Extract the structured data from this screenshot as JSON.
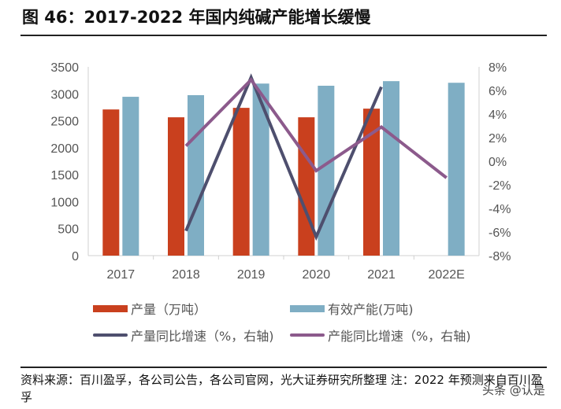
{
  "title": "图 46：2017-2022 年国内纯碱产能增长缓慢",
  "chart_data": {
    "type": "bar",
    "categories": [
      "2017",
      "2018",
      "2019",
      "2020",
      "2021",
      "2022E"
    ],
    "series": [
      {
        "name": "产量（万吨）",
        "type": "bar",
        "axis": "left",
        "color": "#C9401E",
        "values": [
          2710,
          2565,
          2740,
          2565,
          2725,
          null
        ]
      },
      {
        "name": "有效产能(万吨)",
        "type": "bar",
        "axis": "left",
        "color": "#7FAEC4",
        "values": [
          2945,
          2975,
          3190,
          3150,
          3235,
          3205
        ]
      },
      {
        "name": "产量同比增速（%，右轴)",
        "type": "line",
        "axis": "right",
        "color": "#4E4F6E",
        "values": [
          null,
          -5.9,
          7.1,
          -6.4,
          6.3,
          null
        ]
      },
      {
        "name": "产能同比增速（%，右轴)",
        "type": "line",
        "axis": "right",
        "color": "#8C5A8C",
        "values": [
          null,
          1.3,
          6.9,
          -0.8,
          2.9,
          -1.4
        ]
      }
    ],
    "ylim_left": [
      0,
      3500
    ],
    "yticks_left": [
      "0",
      "500",
      "1000",
      "1500",
      "2000",
      "2500",
      "3000",
      "3500"
    ],
    "ylim_right": [
      -8,
      8
    ],
    "yticks_right": [
      "-8%",
      "-6%",
      "-4%",
      "-2%",
      "0%",
      "2%",
      "4%",
      "6%",
      "8%"
    ],
    "grid": false,
    "legend_placement": "bottom"
  },
  "source": "资料来源：百川盈孚，各公司公告，各公司官网，光大证券研究所整理  注：2022 年预测来自百川盈孚",
  "watermark": "头条 @认是"
}
